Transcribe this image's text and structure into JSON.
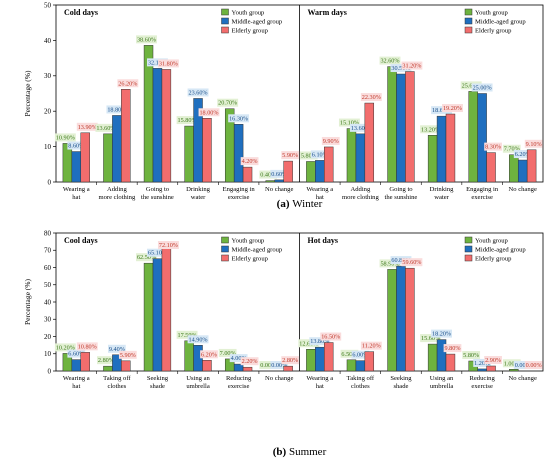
{
  "chart_data": [
    {
      "type": "bar",
      "caption_letter": "(a)",
      "caption_text": "Winter",
      "ylabel": "Percentage (%)",
      "ylim": [
        0,
        50
      ],
      "yticks": [
        0,
        10,
        20,
        30,
        40,
        50
      ],
      "legend_placement": "top-right",
      "series_colors": [
        "#6eb33f",
        "#1f6fbf",
        "#f26d6d"
      ],
      "label_colors": [
        "#e2f0d3",
        "#d6e7f5",
        "#fadcdc"
      ],
      "panels": [
        {
          "title": "Cold days",
          "categories": [
            [
              "Wearing a",
              "hat"
            ],
            [
              "Adding",
              "more clothing"
            ],
            [
              "Going to",
              "the sunshine"
            ],
            [
              "Drinking",
              "water"
            ],
            [
              "Engaging in",
              "exercise"
            ],
            [
              "No change"
            ]
          ],
          "series": [
            {
              "name": "Youth group",
              "values": [
                10.9,
                13.6,
                38.6,
                15.8,
                20.7,
                0.4
              ]
            },
            {
              "name": "Middle-aged group",
              "values": [
                8.6,
                18.8,
                32.1,
                23.6,
                16.3,
                0.6
              ]
            },
            {
              "name": "Elderly group",
              "values": [
                13.9,
                26.2,
                31.8,
                18.0,
                4.2,
                5.9
              ]
            }
          ],
          "labels": [
            [
              "10.90%",
              "13.60%",
              "38.60%",
              "15.80%",
              "20.70%",
              "0.40%"
            ],
            [
              "8.60%",
              "18.80%",
              "32.10%",
              "23.60%",
              "16.30%",
              "0.60%"
            ],
            [
              "13.90%",
              "26.20%",
              "31.80%",
              "18.00%",
              "4.20%",
              "5.90%"
            ]
          ]
        },
        {
          "title": "Warm days",
          "categories": [
            [
              "Wearing a",
              "hat"
            ],
            [
              "Adding",
              "more clothing"
            ],
            [
              "Going to",
              "the sunshine"
            ],
            [
              "Drinking",
              "water"
            ],
            [
              "Engaging in",
              "exercise"
            ],
            [
              "No change"
            ]
          ],
          "series": [
            {
              "name": "Youth group",
              "values": [
                5.8,
                15.1,
                32.6,
                13.2,
                25.6,
                7.7
              ]
            },
            {
              "name": "Middle-aged group",
              "values": [
                6.1,
                13.6,
                30.5,
                18.6,
                25.0,
                6.2
              ]
            },
            {
              "name": "Elderly group",
              "values": [
                9.9,
                22.3,
                31.2,
                19.2,
                8.3,
                9.1
              ]
            }
          ],
          "labels": [
            [
              "5.80%",
              "15.10%",
              "32.60%",
              "13.20%",
              "25.60%",
              "7.70%"
            ],
            [
              "6.10%",
              "13.60%",
              "30.50%",
              "18.60%",
              "25.00%",
              "6.20%"
            ],
            [
              "9.90%",
              "22.30%",
              "31.20%",
              "19.20%",
              "8.30%",
              "9.10%"
            ]
          ]
        }
      ]
    },
    {
      "type": "bar",
      "caption_letter": "(b)",
      "caption_text": "Summer",
      "ylabel": "Percentage (%)",
      "ylim": [
        0,
        80
      ],
      "yticks": [
        0,
        10,
        20,
        30,
        40,
        50,
        60,
        70,
        80
      ],
      "legend_placement": "top-right",
      "series_colors": [
        "#6eb33f",
        "#1f6fbf",
        "#f26d6d"
      ],
      "label_colors": [
        "#e2f0d3",
        "#d6e7f5",
        "#fadcdc"
      ],
      "panels": [
        {
          "title": "Cool days",
          "categories": [
            [
              "Wearing a",
              "hat"
            ],
            [
              "Taking off",
              "clothes"
            ],
            [
              "Seeking",
              "shade"
            ],
            [
              "Using  an",
              "umbrella"
            ],
            [
              "Reducing",
              "exercise"
            ],
            [
              "No change"
            ]
          ],
          "series": [
            {
              "name": "Youth group",
              "values": [
                10.2,
                2.8,
                62.5,
                17.5,
                7.0,
                0.0
              ]
            },
            {
              "name": "Middle-aged group",
              "values": [
                6.6,
                9.4,
                65.1,
                14.9,
                4.0,
                0.0
              ]
            },
            {
              "name": "Elderly group",
              "values": [
                10.8,
                5.9,
                72.1,
                6.2,
                2.2,
                2.8
              ]
            }
          ],
          "labels": [
            [
              "10.20%",
              "2.80%",
              "62.50%",
              "17.50%",
              "7.00%",
              "0.00%"
            ],
            [
              "6.60%",
              "9.40%",
              "65.10%",
              "14.90%",
              "4.00%",
              "0.00%"
            ],
            [
              "10.80%",
              "5.90%",
              "72.10%",
              "6.20%",
              "2.20%",
              "2.80%"
            ]
          ]
        },
        {
          "title": "Hot days",
          "categories": [
            [
              "Wearing a",
              "hat"
            ],
            [
              "Taking off",
              "clothes"
            ],
            [
              "Seeking",
              "shade"
            ],
            [
              "Using  an",
              "umbrella"
            ],
            [
              "Reducing",
              "exercise"
            ],
            [
              "No change"
            ]
          ],
          "series": [
            {
              "name": "Youth group",
              "values": [
                12.6,
                6.5,
                58.9,
                15.6,
                5.8,
                1.0
              ]
            },
            {
              "name": "Middle-aged group",
              "values": [
                13.8,
                6.0,
                60.8,
                18.2,
                1.2,
                0.0
              ]
            },
            {
              "name": "Elderly group",
              "values": [
                16.5,
                11.2,
                59.6,
                9.8,
                2.9,
                0.0
              ]
            }
          ],
          "labels": [
            [
              "12.60%",
              "6.50%",
              "58.90%",
              "15.60%",
              "5.80%",
              "1.00%"
            ],
            [
              "13.80%",
              "6.00%",
              "60.80%",
              "18.20%",
              "1.20%",
              "0.00%"
            ],
            [
              "16.50%",
              "11.20%",
              "59.60%",
              "9.80%",
              "2.90%",
              "0.00%"
            ]
          ]
        }
      ]
    }
  ]
}
